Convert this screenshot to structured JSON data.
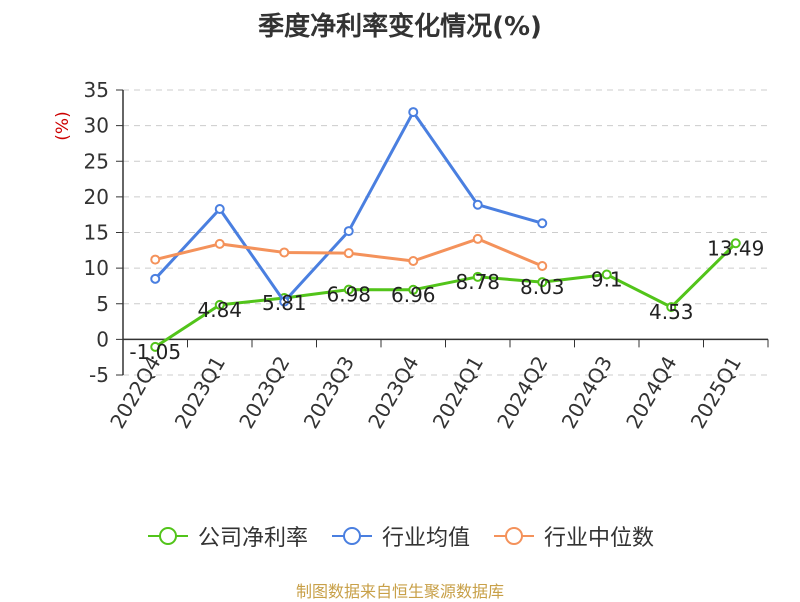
{
  "chart_data": {
    "type": "line",
    "title": "季度净利率变化情况(%)",
    "ylabel": "(%)",
    "categories": [
      "2022Q4",
      "2023Q1",
      "2023Q2",
      "2023Q3",
      "2023Q4",
      "2024Q1",
      "2024Q2",
      "2024Q3",
      "2024Q4",
      "2025Q1"
    ],
    "ylim": [
      -5,
      35
    ],
    "yticks": [
      "35",
      "30",
      "25",
      "20",
      "15",
      "10",
      "5",
      "0",
      "-5"
    ],
    "grid": true,
    "legend_position": "bottom",
    "series": [
      {
        "name": "公司净利率",
        "color": "#52c41a",
        "show_labels": true,
        "values": [
          -1.05,
          4.84,
          5.81,
          6.98,
          6.96,
          8.78,
          8.03,
          9.1,
          4.53,
          13.49
        ],
        "labels": [
          "-1.05",
          "4.84",
          "5.81",
          "6.98",
          "6.96",
          "8.78",
          "8.03",
          "9.1",
          "4.53",
          "13.49"
        ]
      },
      {
        "name": "行业均值",
        "color": "#4a7fe0",
        "show_labels": false,
        "values": [
          8.5,
          18.3,
          5.3,
          15.2,
          31.9,
          18.9,
          16.3,
          null,
          null,
          null
        ]
      },
      {
        "name": "行业中位数",
        "color": "#f4925b",
        "show_labels": false,
        "values": [
          11.2,
          13.4,
          12.2,
          12.1,
          11.0,
          14.1,
          10.3,
          null,
          null,
          null
        ]
      }
    ]
  },
  "legend": {
    "items": [
      {
        "label": "公司净利率",
        "color": "#52c41a"
      },
      {
        "label": "行业均值",
        "color": "#4a7fe0"
      },
      {
        "label": "行业中位数",
        "color": "#f4925b"
      }
    ]
  },
  "source": "制图数据来自恒生聚源数据库"
}
